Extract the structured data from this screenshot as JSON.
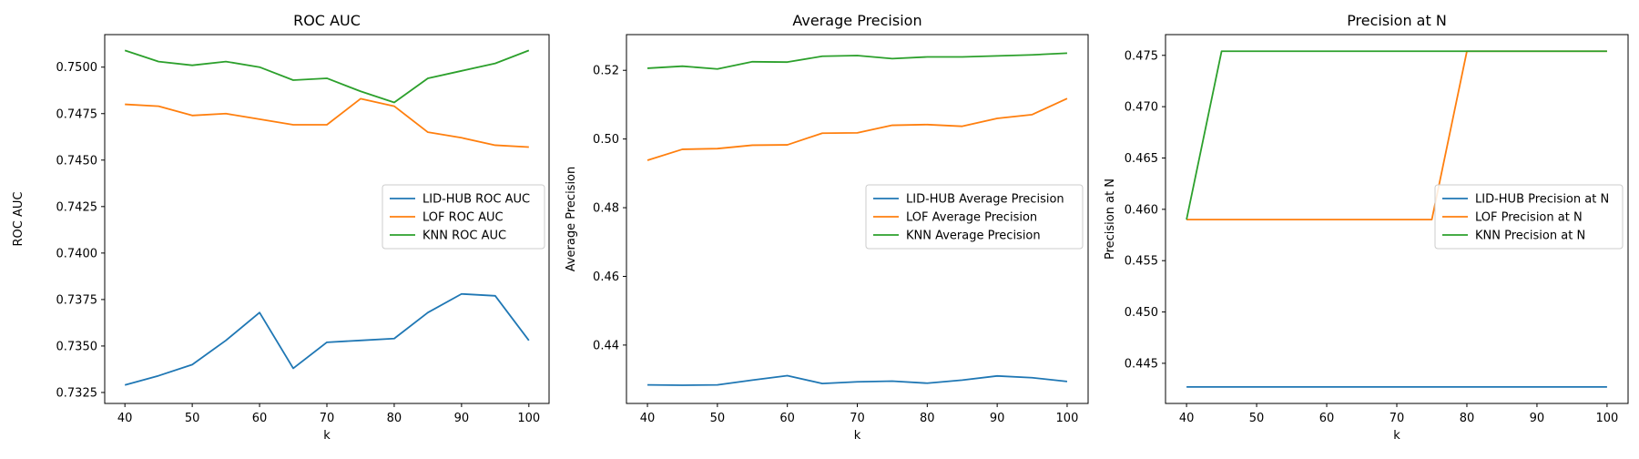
{
  "chart_data": [
    {
      "type": "line",
      "title": "ROC AUC",
      "xlabel": "k",
      "ylabel": "ROC AUC",
      "x": [
        40,
        45,
        50,
        55,
        60,
        65,
        70,
        75,
        80,
        85,
        90,
        95,
        100
      ],
      "xticks": [
        40,
        50,
        60,
        70,
        80,
        90,
        100
      ],
      "xtick_labels": [
        "40",
        "50",
        "60",
        "70",
        "80",
        "90",
        "100"
      ],
      "xlim": [
        37,
        103
      ],
      "yticks": [
        0.7325,
        0.735,
        0.7375,
        0.74,
        0.7425,
        0.745,
        0.7475,
        0.75
      ],
      "ytick_labels": [
        "0.7325",
        "0.7350",
        "0.7375",
        "0.7400",
        "0.7425",
        "0.7450",
        "0.7475",
        "0.7500"
      ],
      "ylim": [
        0.73191,
        0.75175
      ],
      "grid": false,
      "legend": "center right",
      "series": [
        {
          "name": "LID-HUB ROC AUC",
          "color": "#1f77b4",
          "values": [
            0.7329,
            0.7334,
            0.734,
            0.7353,
            0.7368,
            0.7338,
            0.7352,
            0.7353,
            0.7354,
            0.7368,
            0.7378,
            0.7377,
            0.7353
          ]
        },
        {
          "name": "LOF ROC AUC",
          "color": "#ff7f0e",
          "values": [
            0.748,
            0.7479,
            0.7474,
            0.7475,
            0.7472,
            0.7469,
            0.7469,
            0.7483,
            0.7479,
            0.7465,
            0.7462,
            0.7458,
            0.7457
          ]
        },
        {
          "name": "KNN ROC AUC",
          "color": "#2ca02c",
          "values": [
            0.7509,
            0.7503,
            0.7501,
            0.7503,
            0.75,
            0.7493,
            0.7494,
            0.7487,
            0.7481,
            0.7494,
            0.7498,
            0.7502,
            0.7509
          ]
        }
      ]
    },
    {
      "type": "line",
      "title": "Average Precision",
      "xlabel": "k",
      "ylabel": "Average Precision",
      "x": [
        40,
        45,
        50,
        55,
        60,
        65,
        70,
        75,
        80,
        85,
        90,
        95,
        100
      ],
      "xticks": [
        40,
        50,
        60,
        70,
        80,
        90,
        100
      ],
      "xtick_labels": [
        "40",
        "50",
        "60",
        "70",
        "80",
        "90",
        "100"
      ],
      "xlim": [
        37,
        103
      ],
      "yticks": [
        0.44,
        0.46,
        0.48,
        0.5,
        0.52
      ],
      "ytick_labels": [
        "0.44",
        "0.46",
        "0.48",
        "0.50",
        "0.52"
      ],
      "ylim": [
        0.423,
        0.5304
      ],
      "grid": false,
      "legend": "center right",
      "series": [
        {
          "name": "LID-HUB Average Precision",
          "color": "#1f77b4",
          "values": [
            0.4284,
            0.4283,
            0.4284,
            0.4298,
            0.4311,
            0.4288,
            0.4293,
            0.4295,
            0.4289,
            0.4298,
            0.431,
            0.4305,
            0.4294
          ]
        },
        {
          "name": "LOF Average Precision",
          "color": "#ff7f0e",
          "values": [
            0.4938,
            0.497,
            0.4972,
            0.4982,
            0.4983,
            0.5017,
            0.5018,
            0.504,
            0.5042,
            0.5037,
            0.506,
            0.5071,
            0.5118
          ]
        },
        {
          "name": "KNN Average Precision",
          "color": "#2ca02c",
          "values": [
            0.5206,
            0.5212,
            0.5204,
            0.5225,
            0.5224,
            0.5241,
            0.5243,
            0.5234,
            0.5239,
            0.5239,
            0.5242,
            0.5245,
            0.525
          ]
        }
      ]
    },
    {
      "type": "line",
      "title": "Precision at N",
      "xlabel": "k",
      "ylabel": "Precision at N",
      "x": [
        40,
        45,
        50,
        55,
        60,
        65,
        70,
        75,
        80,
        85,
        90,
        95,
        100
      ],
      "xticks": [
        40,
        50,
        60,
        70,
        80,
        90,
        100
      ],
      "xtick_labels": [
        "40",
        "50",
        "60",
        "70",
        "80",
        "90",
        "100"
      ],
      "xlim": [
        37,
        103
      ],
      "yticks": [
        0.445,
        0.45,
        0.455,
        0.46,
        0.465,
        0.47,
        0.475
      ],
      "ytick_labels": [
        "0.445",
        "0.450",
        "0.455",
        "0.460",
        "0.465",
        "0.470",
        "0.475"
      ],
      "ylim": [
        0.44109,
        0.47702
      ],
      "grid": false,
      "legend": "center right",
      "series": [
        {
          "name": "LID-HUB Precision at N",
          "color": "#1f77b4",
          "values": [
            0.4427,
            0.4427,
            0.4427,
            0.4427,
            0.4427,
            0.4427,
            0.4427,
            0.4427,
            0.4427,
            0.4427,
            0.4427,
            0.4427,
            0.4427
          ]
        },
        {
          "name": "LOF Precision at N",
          "color": "#ff7f0e",
          "values": [
            0.459,
            0.459,
            0.459,
            0.459,
            0.459,
            0.459,
            0.459,
            0.459,
            0.4754,
            0.4754,
            0.4754,
            0.4754,
            0.4754
          ]
        },
        {
          "name": "KNN Precision at N",
          "color": "#2ca02c",
          "values": [
            0.459,
            0.4754,
            0.4754,
            0.4754,
            0.4754,
            0.4754,
            0.4754,
            0.4754,
            0.4754,
            0.4754,
            0.4754,
            0.4754,
            0.4754
          ]
        }
      ]
    }
  ]
}
